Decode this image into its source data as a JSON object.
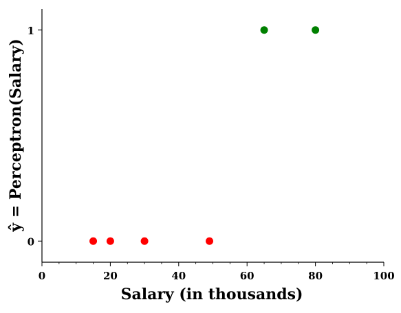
{
  "chart_data": {
    "type": "scatter",
    "xlabel": "Salary (in thousands)",
    "ylabel": "ŷ = Perceptron(Salary)",
    "xlim": [
      0,
      100
    ],
    "ylim": [
      -0.1,
      1.1
    ],
    "xticks": [
      0,
      20,
      40,
      60,
      80,
      100
    ],
    "yticks": [
      0,
      1
    ],
    "grid": false,
    "legend": "none",
    "series": [
      {
        "color": "#ff0000",
        "points": [
          {
            "x": 15,
            "y": 0
          },
          {
            "x": 20,
            "y": 0
          },
          {
            "x": 30,
            "y": 0
          },
          {
            "x": 49,
            "y": 0
          }
        ]
      },
      {
        "color": "#008000",
        "points": [
          {
            "x": 65,
            "y": 1
          },
          {
            "x": 80,
            "y": 1
          }
        ]
      }
    ]
  }
}
